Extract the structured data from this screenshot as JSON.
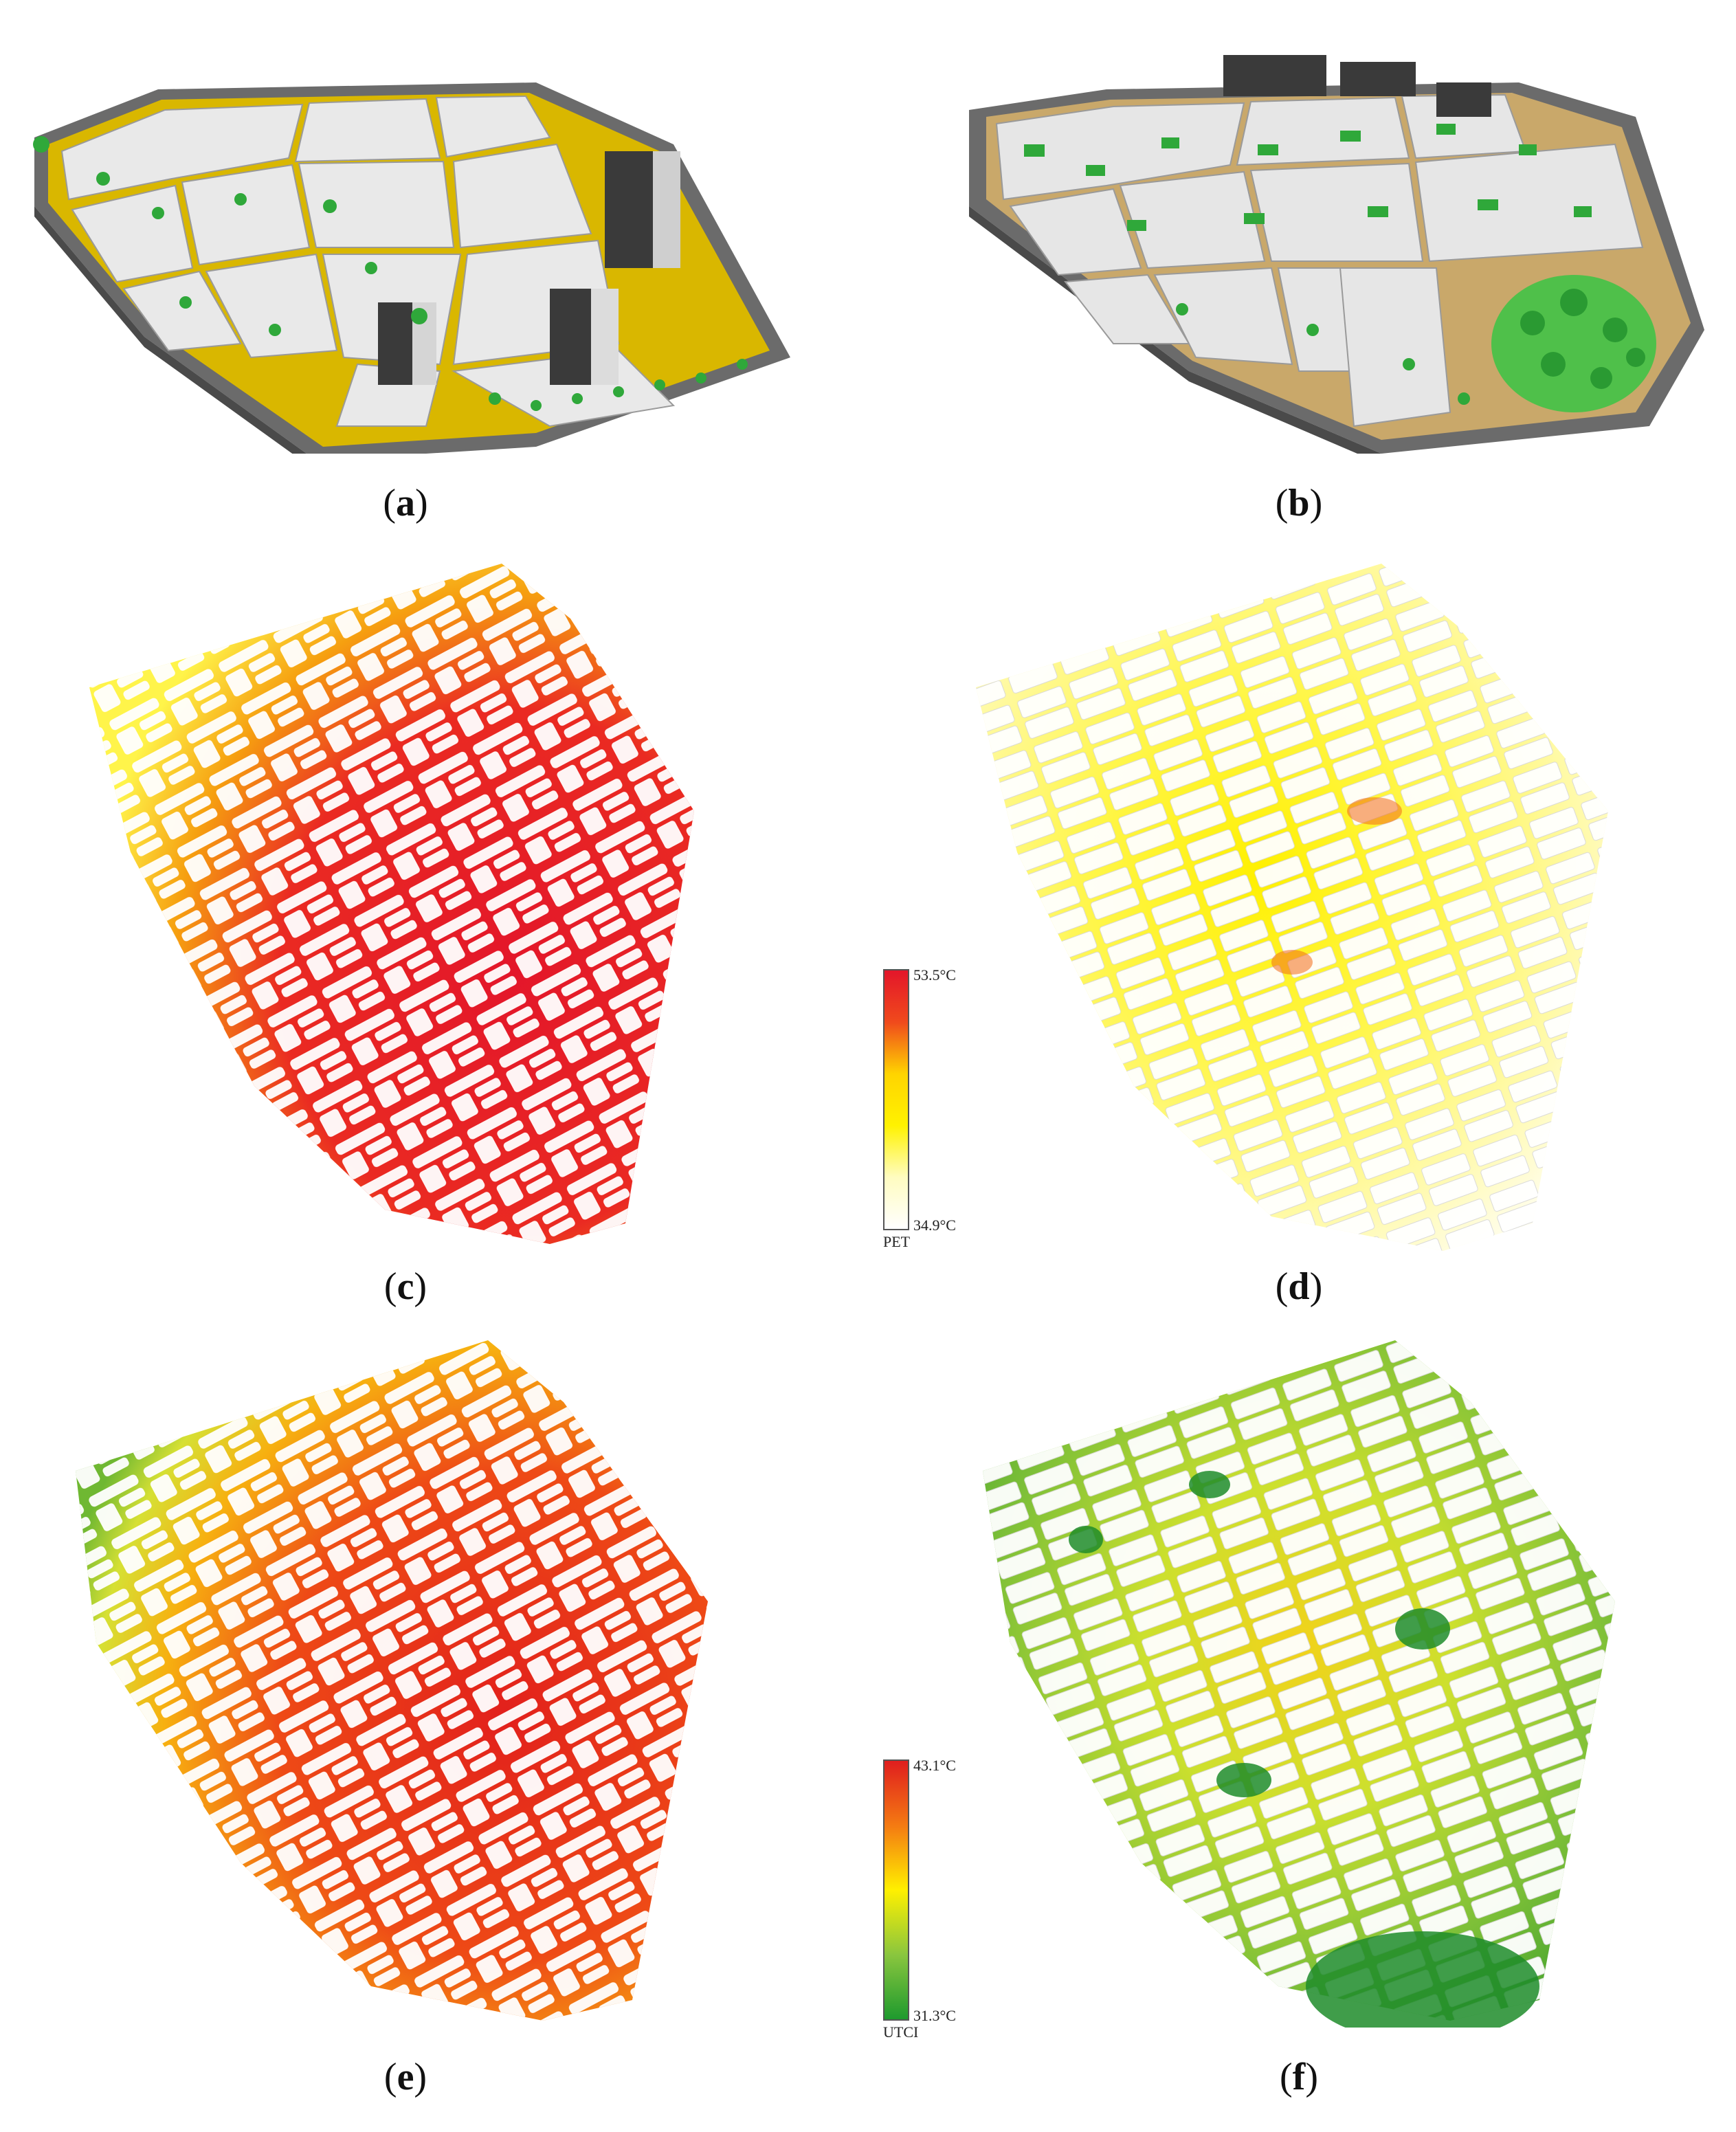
{
  "captions": {
    "a": "a",
    "b": "b",
    "c": "c",
    "d": "d",
    "e": "e",
    "f": "f"
  },
  "legend_pet": {
    "max_label": "53.5°C",
    "min_label": "34.9°C",
    "index_label": "PET",
    "colors": [
      "#e3162a",
      "#f04a1c",
      "#ffd400",
      "#fff200",
      "#fffcc0",
      "#ffffff"
    ]
  },
  "legend_utci": {
    "max_label": "43.1°C",
    "min_label": "31.3°C",
    "index_label": "UTCI",
    "colors": [
      "#e01e1e",
      "#f47a12",
      "#fff000",
      "#8ac63e",
      "#1e9a2e"
    ]
  },
  "colors": {
    "road": "#6e6e6e",
    "building": "#f2f2f2",
    "tree": "#2fa83a",
    "hot": "#e3162a",
    "cool_green": "#3da82f"
  }
}
